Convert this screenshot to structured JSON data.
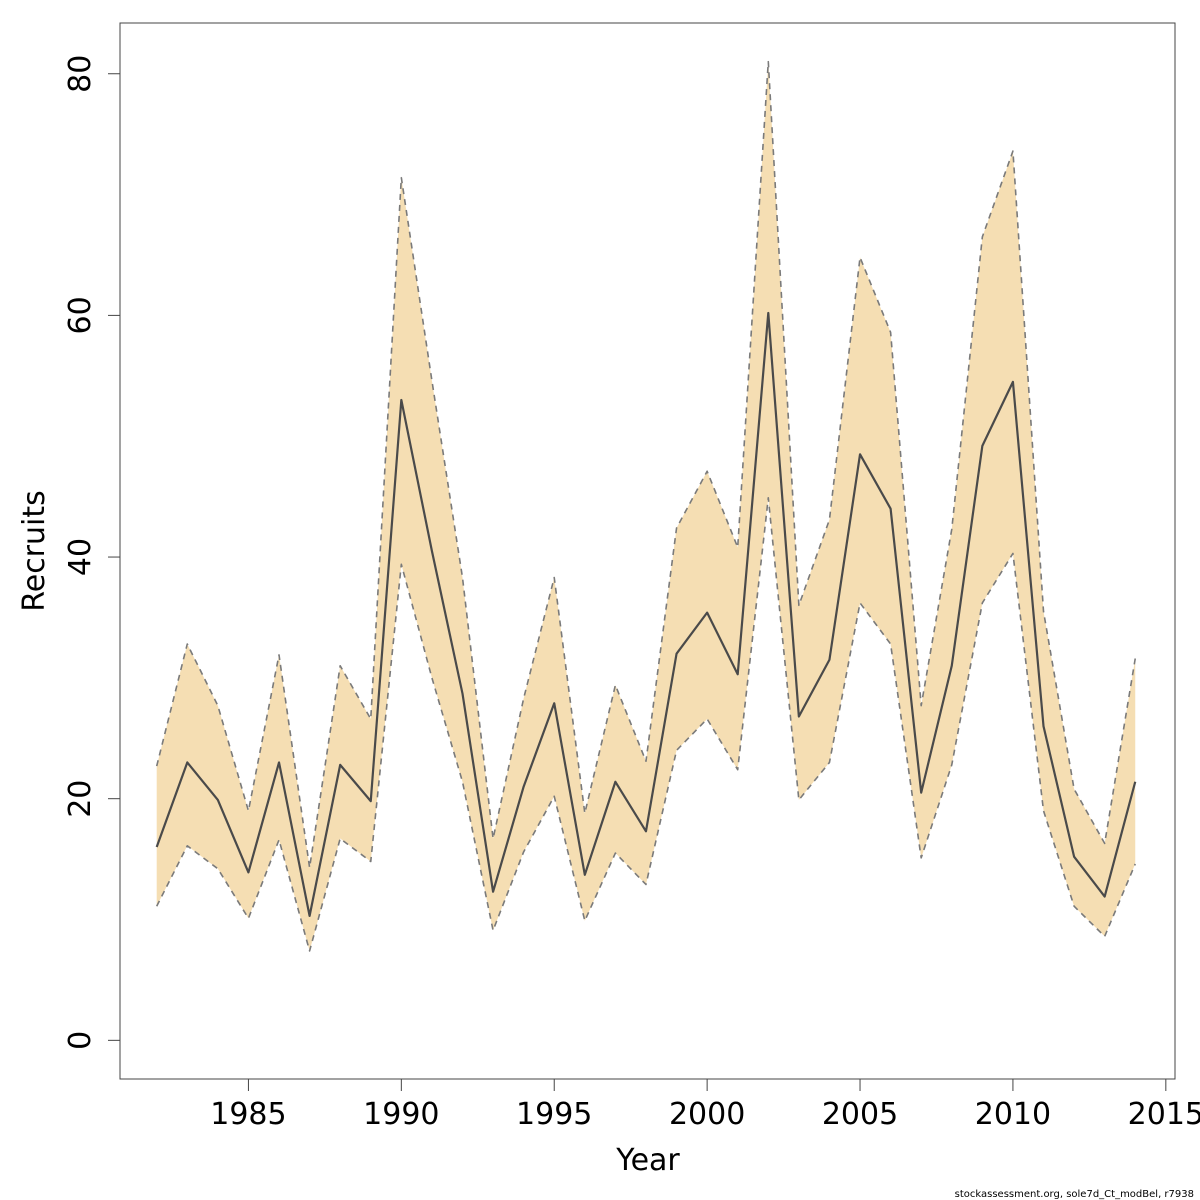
{
  "chart_data": {
    "type": "area",
    "title": "",
    "xlabel": "Year",
    "ylabel": "Recruits",
    "xlim": [
      1980.8,
      2015.3
    ],
    "ylim": [
      -3.2,
      84.2
    ],
    "xticks": [
      1985,
      1990,
      1995,
      2000,
      2005,
      2010,
      2015
    ],
    "yticks": [
      0,
      20,
      40,
      60,
      80
    ],
    "grid": false,
    "legend": "none",
    "colors": {
      "band_fill": "#f5deb3",
      "band_edge": "#7a7a7a",
      "median_line": "#4a4a4a",
      "axis": "#444444"
    },
    "x": [
      1982,
      1983,
      1984,
      1985,
      1986,
      1987,
      1988,
      1989,
      1990,
      1991,
      1992,
      1993,
      1994,
      1995,
      1996,
      1997,
      1998,
      1999,
      2000,
      2001,
      2002,
      2003,
      2004,
      2005,
      2006,
      2007,
      2008,
      2009,
      2010,
      2011,
      2012,
      2013,
      2014
    ],
    "series": [
      {
        "role": "median",
        "values": [
          16.0,
          23.0,
          19.9,
          13.9,
          23.0,
          10.3,
          22.8,
          19.8,
          53.0,
          40.5,
          28.7,
          12.3,
          21.0,
          27.9,
          13.7,
          21.4,
          17.3,
          32.0,
          35.4,
          30.3,
          60.2,
          26.8,
          31.5,
          48.5,
          44.0,
          20.5,
          31.0,
          49.2,
          54.5,
          26.0,
          15.2,
          11.9,
          21.4
        ]
      },
      {
        "role": "upper",
        "values": [
          22.7,
          32.8,
          27.7,
          19.0,
          31.9,
          14.3,
          31.0,
          26.6,
          71.4,
          54.6,
          38.3,
          16.7,
          28.3,
          38.3,
          18.8,
          29.4,
          23.1,
          42.4,
          47.1,
          40.8,
          81.0,
          36.0,
          43.1,
          64.8,
          58.6,
          27.7,
          42.3,
          66.5,
          73.6,
          35.5,
          20.8,
          16.3,
          31.6
        ]
      },
      {
        "role": "lower",
        "values": [
          11.1,
          16.1,
          14.2,
          10.1,
          16.6,
          7.4,
          16.7,
          14.8,
          39.4,
          30.0,
          21.4,
          9.1,
          15.6,
          20.2,
          9.9,
          15.5,
          12.9,
          24.0,
          26.6,
          22.4,
          44.9,
          19.9,
          23.0,
          36.2,
          32.8,
          15.1,
          22.8,
          36.2,
          40.3,
          19.0,
          11.1,
          8.6,
          14.6
        ]
      }
    ]
  },
  "footnote": "stockassessment.org, sole7d_Ct_modBel, r7938"
}
